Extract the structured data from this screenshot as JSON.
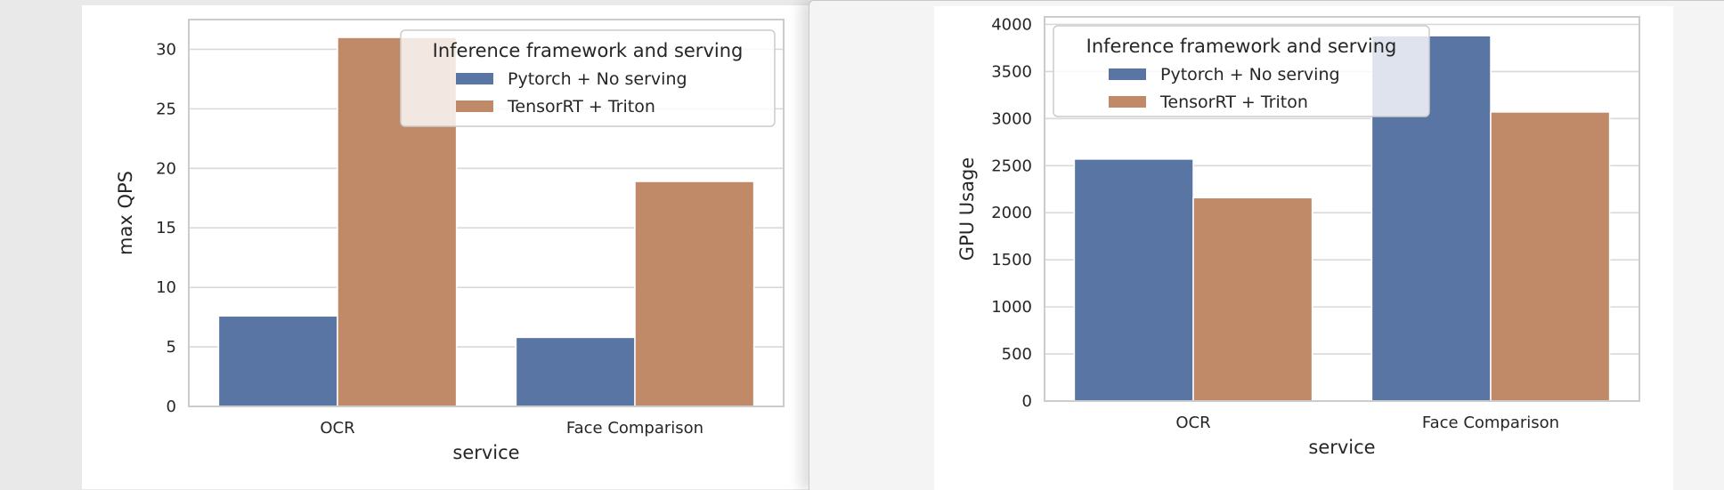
{
  "chart_data": [
    {
      "type": "bar",
      "categories": [
        "OCR",
        "Face Comparison"
      ],
      "series": [
        {
          "name": "Pytorch + No serving",
          "values": [
            7.6,
            5.8
          ],
          "color": "#5975a4"
        },
        {
          "name": "TensorRT + Triton",
          "values": [
            31.0,
            18.9
          ],
          "color": "#c08a68"
        }
      ],
      "xlabel": "service",
      "ylabel": "max QPS",
      "ylim": [
        0,
        32.5
      ],
      "yticks": [
        0,
        5,
        10,
        15,
        20,
        25,
        30
      ],
      "legend_title": "Inference framework and serving",
      "legend_position": "top-right",
      "grid": true
    },
    {
      "type": "bar",
      "categories": [
        "OCR",
        "Face Comparison"
      ],
      "series": [
        {
          "name": "Pytorch + No serving",
          "values": [
            2570,
            3880
          ],
          "color": "#5975a4"
        },
        {
          "name": "TensorRT + Triton",
          "values": [
            2160,
            3070
          ],
          "color": "#c08a68"
        }
      ],
      "xlabel": "service",
      "ylabel": "GPU Usage",
      "ylim": [
        0,
        4080
      ],
      "yticks": [
        0,
        500,
        1000,
        1500,
        2000,
        2500,
        3000,
        3500,
        4000
      ],
      "legend_title": "Inference framework and serving",
      "legend_position": "top-left",
      "grid": true
    }
  ]
}
